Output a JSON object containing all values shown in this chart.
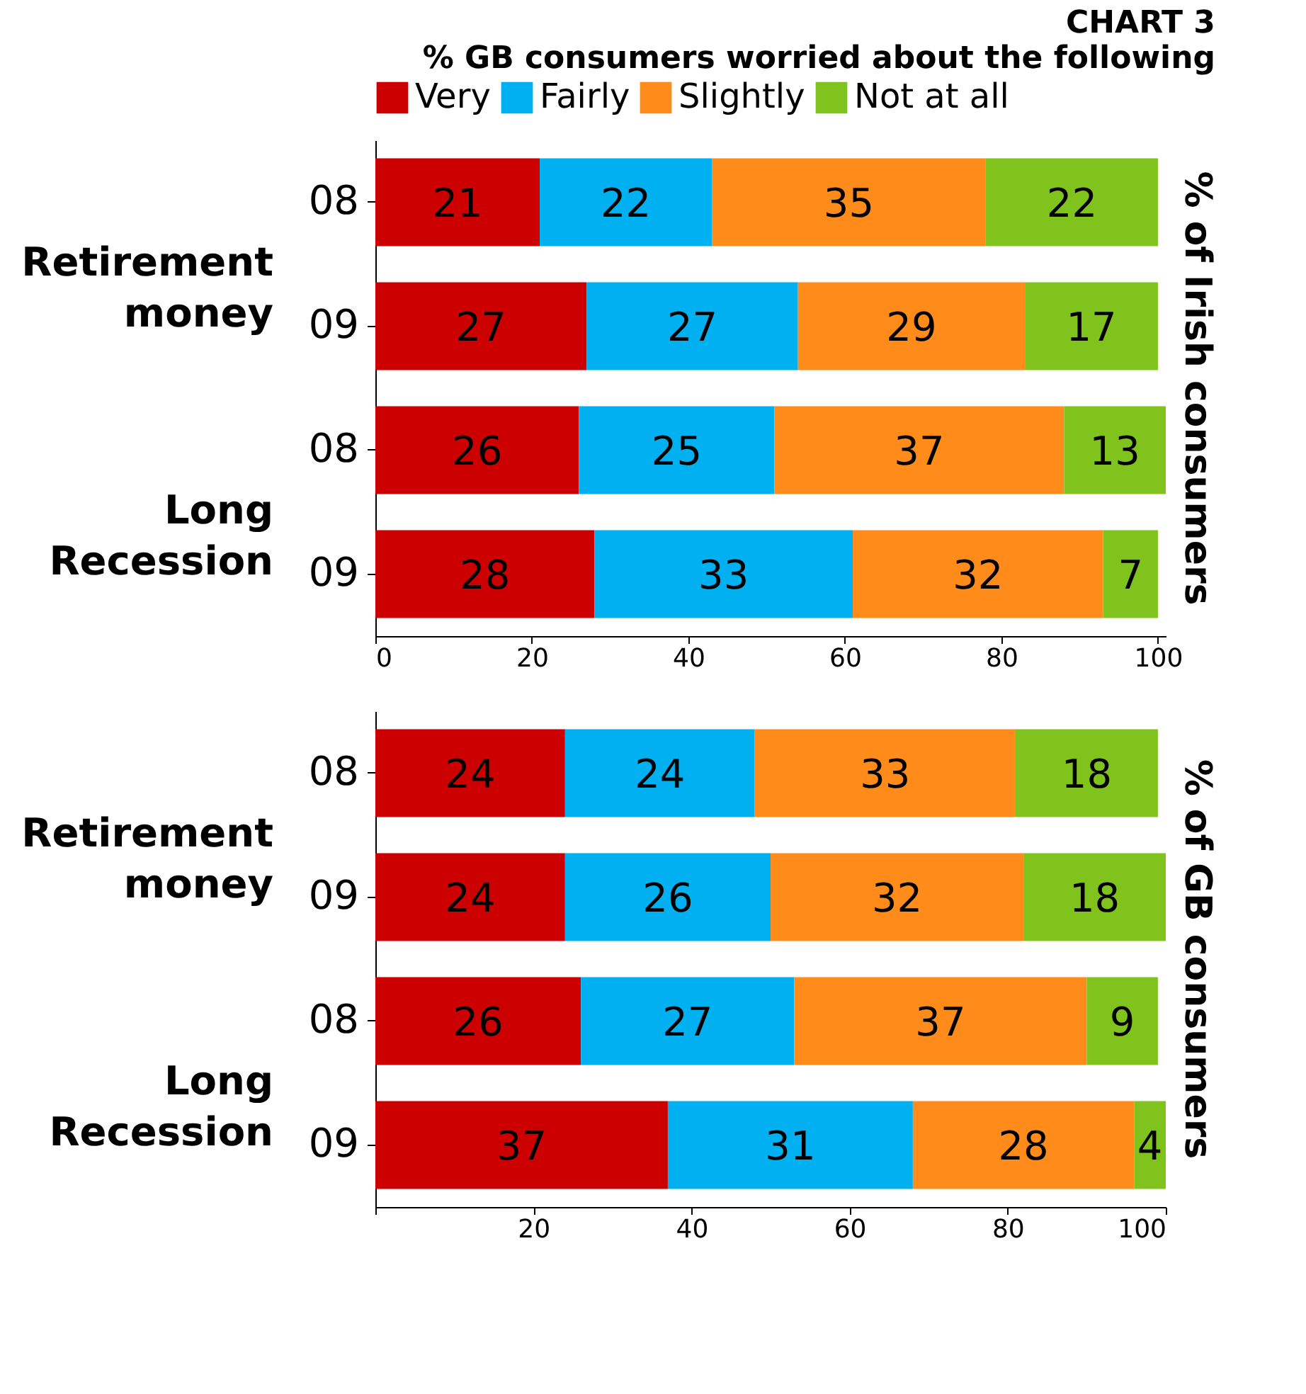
{
  "chart_data": [
    {
      "type": "bar",
      "orientation": "horizontal",
      "stacked": true,
      "title": "CHART 3",
      "subtitle": "% GB consumers worried about the following",
      "ylabel": "% of Irish consumers",
      "legend": "top",
      "data_labels": true,
      "grid": false,
      "categories": [
        "08",
        "09",
        "08",
        "09"
      ],
      "annotations": [
        "Retirement money",
        "Long Recession"
      ],
      "series": [
        {
          "name": "Very",
          "color": "#cc0000",
          "values": [
            21,
            27,
            26,
            28
          ]
        },
        {
          "name": "Fairly",
          "color": "#00b0f0",
          "values": [
            22,
            27,
            25,
            33
          ]
        },
        {
          "name": "Slightly",
          "color": "#ff8c1a",
          "values": [
            35,
            29,
            37,
            32
          ]
        },
        {
          "name": "Not at all",
          "color": "#80c31c",
          "values": [
            22,
            17,
            13,
            7
          ]
        }
      ],
      "xlim": [
        0,
        101
      ],
      "xticks": [
        0,
        20,
        40,
        60,
        80,
        100
      ]
    },
    {
      "type": "bar",
      "orientation": "horizontal",
      "stacked": true,
      "ylabel": "% of GB consumers",
      "legend": false,
      "data_labels": true,
      "grid": false,
      "categories": [
        "08",
        "09",
        "08",
        "09"
      ],
      "annotations": [
        "Retirement money",
        "Long Recession"
      ],
      "series": [
        {
          "name": "Very",
          "color": "#cc0000",
          "values": [
            24,
            24,
            26,
            37
          ]
        },
        {
          "name": "Fairly",
          "color": "#00b0f0",
          "values": [
            24,
            26,
            27,
            31
          ]
        },
        {
          "name": "Slightly",
          "color": "#ff8c1a",
          "values": [
            33,
            32,
            37,
            28
          ]
        },
        {
          "name": "Not at all",
          "color": "#80c31c",
          "values": [
            18,
            18,
            9,
            4
          ]
        }
      ],
      "xlim": [
        0,
        100
      ],
      "xticks": [
        {
          "value": 0,
          "label": null
        },
        20,
        40,
        60,
        80,
        100
      ]
    }
  ]
}
